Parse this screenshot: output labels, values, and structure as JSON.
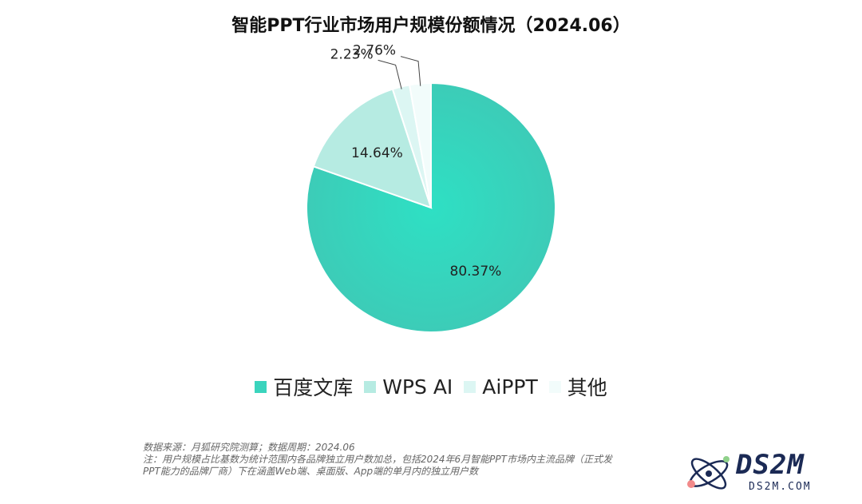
{
  "chart_data": {
    "type": "pie",
    "title": "智能PPT行业市场用户规模份额情况（2024.06）",
    "slices": [
      {
        "name": "百度文库",
        "value": 80.37,
        "label": "80.37%",
        "color": "#3ad4bd"
      },
      {
        "name": "WPS AI",
        "value": 14.64,
        "label": "14.64%",
        "color": "#b6ebe2"
      },
      {
        "name": "AiPPT",
        "value": 2.23,
        "label": "2.23%",
        "color": "#dcf6f3"
      },
      {
        "name": "其他",
        "value": 2.76,
        "label": "2.76%",
        "color": "#f2fcfb"
      }
    ],
    "legend_position": "bottom"
  },
  "notes": {
    "line1": "数据来源：月狐研究院测算；数据周期：2024.06",
    "line2": "注：用户规模占比基数为统计范围内各品牌独立用户数加总，包括2024年6月智能PPT市场内主流品牌（正式发",
    "line3": "PPT能力的品牌厂商）下在涵盖Web端、桌面版、App端的单月内的独立用户数"
  },
  "watermark": {
    "logo": "DS2M",
    "url": "DS2M.COM"
  }
}
